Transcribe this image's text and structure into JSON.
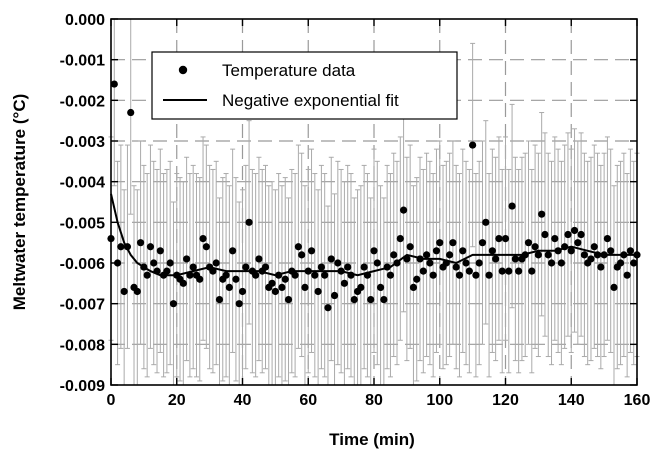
{
  "chart_data": {
    "type": "scatter",
    "xlabel": "Time (min)",
    "ylabel": "Meltwater temperature (°C)",
    "xlim": [
      0,
      160
    ],
    "ylim": [
      -0.009,
      0.0
    ],
    "x_ticks": [
      "0",
      "20",
      "40",
      "60",
      "80",
      "100",
      "120",
      "140",
      "160"
    ],
    "y_ticks": [
      "0.000",
      "-0.001",
      "-0.002",
      "-0.003",
      "-0.004",
      "-0.005",
      "-0.006",
      "-0.007",
      "-0.008",
      "-0.009"
    ],
    "grid": true,
    "legend_position": "top-center",
    "series": [
      {
        "name": "Temperature data",
        "marker": "circle",
        "color": "#000000",
        "error_bar": 0.0025,
        "error_bar_color": "#aaaaaa",
        "points": [
          [
            0,
            -0.0054
          ],
          [
            1,
            -0.0016
          ],
          [
            2,
            -0.006
          ],
          [
            3,
            -0.0056
          ],
          [
            4,
            -0.0067
          ],
          [
            5,
            -0.0056
          ],
          [
            6,
            -0.0023
          ],
          [
            7,
            -0.0066
          ],
          [
            8,
            -0.0067
          ],
          [
            9,
            -0.0055
          ],
          [
            10,
            -0.0061
          ],
          [
            11,
            -0.0063
          ],
          [
            12,
            -0.0056
          ],
          [
            13,
            -0.006
          ],
          [
            14,
            -0.0062
          ],
          [
            15,
            -0.0057
          ],
          [
            16,
            -0.0063
          ],
          [
            17,
            -0.0062
          ],
          [
            18,
            -0.006
          ],
          [
            19,
            -0.007
          ],
          [
            20,
            -0.0063
          ],
          [
            21,
            -0.0064
          ],
          [
            22,
            -0.0065
          ],
          [
            23,
            -0.0059
          ],
          [
            24,
            -0.0063
          ],
          [
            25,
            -0.0061
          ],
          [
            26,
            -0.0063
          ],
          [
            27,
            -0.0064
          ],
          [
            28,
            -0.0054
          ],
          [
            29,
            -0.0056
          ],
          [
            30,
            -0.0061
          ],
          [
            31,
            -0.0062
          ],
          [
            32,
            -0.006
          ],
          [
            33,
            -0.0069
          ],
          [
            34,
            -0.0064
          ],
          [
            35,
            -0.0063
          ],
          [
            36,
            -0.0066
          ],
          [
            37,
            -0.0057
          ],
          [
            38,
            -0.0064
          ],
          [
            39,
            -0.007
          ],
          [
            40,
            -0.0067
          ],
          [
            41,
            -0.0061
          ],
          [
            42,
            -0.005
          ],
          [
            43,
            -0.0062
          ],
          [
            44,
            -0.0063
          ],
          [
            45,
            -0.0059
          ],
          [
            46,
            -0.0062
          ],
          [
            47,
            -0.0061
          ],
          [
            48,
            -0.0066
          ],
          [
            49,
            -0.0065
          ],
          [
            50,
            -0.0067
          ],
          [
            51,
            -0.0063
          ],
          [
            52,
            -0.0066
          ],
          [
            53,
            -0.0064
          ],
          [
            54,
            -0.0069
          ],
          [
            55,
            -0.0062
          ],
          [
            56,
            -0.0063
          ],
          [
            57,
            -0.0056
          ],
          [
            58,
            -0.0058
          ],
          [
            59,
            -0.0066
          ],
          [
            60,
            -0.0062
          ],
          [
            61,
            -0.0057
          ],
          [
            62,
            -0.0063
          ],
          [
            63,
            -0.0067
          ],
          [
            64,
            -0.0061
          ],
          [
            65,
            -0.0063
          ],
          [
            66,
            -0.0071
          ],
          [
            67,
            -0.0059
          ],
          [
            68,
            -0.0068
          ],
          [
            69,
            -0.006
          ],
          [
            70,
            -0.0062
          ],
          [
            71,
            -0.0065
          ],
          [
            72,
            -0.0061
          ],
          [
            73,
            -0.0063
          ],
          [
            74,
            -0.0069
          ],
          [
            75,
            -0.0067
          ],
          [
            76,
            -0.0066
          ],
          [
            77,
            -0.0061
          ],
          [
            78,
            -0.0063
          ],
          [
            79,
            -0.0069
          ],
          [
            80,
            -0.0057
          ],
          [
            81,
            -0.006
          ],
          [
            82,
            -0.0066
          ],
          [
            83,
            -0.0069
          ],
          [
            84,
            -0.0061
          ],
          [
            85,
            -0.0063
          ],
          [
            86,
            -0.0058
          ],
          [
            87,
            -0.006
          ],
          [
            88,
            -0.0054
          ],
          [
            89,
            -0.0047
          ],
          [
            90,
            -0.0059
          ],
          [
            91,
            -0.0056
          ],
          [
            92,
            -0.0066
          ],
          [
            93,
            -0.0064
          ],
          [
            94,
            -0.0059
          ],
          [
            95,
            -0.0062
          ],
          [
            96,
            -0.0058
          ],
          [
            97,
            -0.006
          ],
          [
            98,
            -0.0063
          ],
          [
            99,
            -0.0057
          ],
          [
            100,
            -0.0055
          ],
          [
            101,
            -0.0061
          ],
          [
            102,
            -0.006
          ],
          [
            103,
            -0.0058
          ],
          [
            104,
            -0.0055
          ],
          [
            105,
            -0.0061
          ],
          [
            106,
            -0.0063
          ],
          [
            107,
            -0.0057
          ],
          [
            108,
            -0.006
          ],
          [
            109,
            -0.0062
          ],
          [
            110,
            -0.0031
          ],
          [
            111,
            -0.0063
          ],
          [
            112,
            -0.006
          ],
          [
            113,
            -0.0055
          ],
          [
            114,
            -0.005
          ],
          [
            115,
            -0.0063
          ],
          [
            116,
            -0.0057
          ],
          [
            117,
            -0.0059
          ],
          [
            118,
            -0.0054
          ],
          [
            119,
            -0.0062
          ],
          [
            120,
            -0.0054
          ],
          [
            121,
            -0.0062
          ],
          [
            122,
            -0.0046
          ],
          [
            123,
            -0.0059
          ],
          [
            124,
            -0.0062
          ],
          [
            125,
            -0.0059
          ],
          [
            126,
            -0.0058
          ],
          [
            127,
            -0.0055
          ],
          [
            128,
            -0.0062
          ],
          [
            129,
            -0.0056
          ],
          [
            130,
            -0.0058
          ],
          [
            131,
            -0.0048
          ],
          [
            132,
            -0.0053
          ],
          [
            133,
            -0.0058
          ],
          [
            134,
            -0.006
          ],
          [
            135,
            -0.0054
          ],
          [
            136,
            -0.0057
          ],
          [
            137,
            -0.006
          ],
          [
            138,
            -0.0056
          ],
          [
            139,
            -0.0053
          ],
          [
            140,
            -0.0057
          ],
          [
            141,
            -0.0052
          ],
          [
            142,
            -0.0055
          ],
          [
            143,
            -0.0053
          ],
          [
            144,
            -0.0058
          ],
          [
            145,
            -0.006
          ],
          [
            146,
            -0.0059
          ],
          [
            147,
            -0.0056
          ],
          [
            148,
            -0.0058
          ],
          [
            149,
            -0.0061
          ],
          [
            150,
            -0.0058
          ],
          [
            151,
            -0.0054
          ],
          [
            152,
            -0.0057
          ],
          [
            153,
            -0.0066
          ],
          [
            154,
            -0.0061
          ],
          [
            155,
            -0.006
          ],
          [
            156,
            -0.0058
          ],
          [
            157,
            -0.0063
          ],
          [
            158,
            -0.0057
          ],
          [
            159,
            -0.006
          ],
          [
            160,
            -0.0058
          ]
        ]
      },
      {
        "name": "Negative exponential fit",
        "line": "solid",
        "color": "#000000",
        "points": [
          [
            0,
            -0.0043
          ],
          [
            2,
            -0.005
          ],
          [
            4,
            -0.0055
          ],
          [
            6,
            -0.0058
          ],
          [
            8,
            -0.006
          ],
          [
            10,
            -0.0061
          ],
          [
            12,
            -0.0062
          ],
          [
            15,
            -0.0063
          ],
          [
            20,
            -0.0063
          ],
          [
            25,
            -0.0062
          ],
          [
            30,
            -0.0061
          ],
          [
            35,
            -0.0062
          ],
          [
            40,
            -0.0062
          ],
          [
            45,
            -0.0062
          ],
          [
            50,
            -0.0063
          ],
          [
            55,
            -0.0062
          ],
          [
            60,
            -0.0062
          ],
          [
            65,
            -0.0062
          ],
          [
            70,
            -0.0062
          ],
          [
            75,
            -0.0063
          ],
          [
            80,
            -0.0062
          ],
          [
            85,
            -0.0061
          ],
          [
            90,
            -0.0058
          ],
          [
            95,
            -0.0059
          ],
          [
            100,
            -0.0059
          ],
          [
            105,
            -0.006
          ],
          [
            110,
            -0.0058
          ],
          [
            115,
            -0.0058
          ],
          [
            120,
            -0.0058
          ],
          [
            125,
            -0.0058
          ],
          [
            130,
            -0.0057
          ],
          [
            135,
            -0.0057
          ],
          [
            140,
            -0.0056
          ],
          [
            145,
            -0.0057
          ],
          [
            150,
            -0.0058
          ],
          [
            155,
            -0.0058
          ],
          [
            160,
            -0.0058
          ]
        ]
      }
    ]
  }
}
